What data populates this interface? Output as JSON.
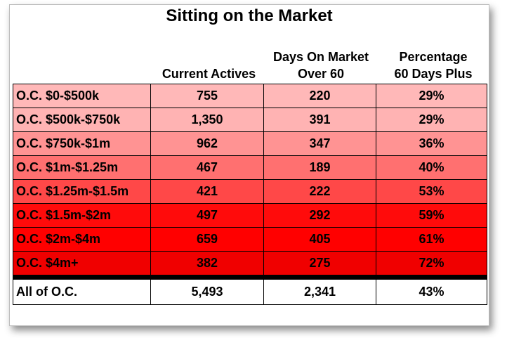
{
  "chart_data": {
    "type": "table",
    "title": "Sitting on the Market",
    "columns": [
      "",
      "Current Actives",
      "Days On Market Over 60",
      "Percentage 60 Days Plus"
    ],
    "column_headers": {
      "current_actives": [
        "Current Actives"
      ],
      "days_on_market": [
        "Days On Market",
        "Over 60"
      ],
      "percentage": [
        "Percentage",
        "60 Days Plus"
      ]
    },
    "rows": [
      {
        "label": "O.C. $0-$500k",
        "current_actives": "755",
        "dom_over_60": "220",
        "percentage": "29%",
        "color": "#ffb8b8"
      },
      {
        "label": "O.C. $500k-$750k",
        "current_actives": "1,350",
        "dom_over_60": "391",
        "percentage": "29%",
        "color": "#ffb3b3"
      },
      {
        "label": "O.C. $750k-$1m",
        "current_actives": "962",
        "dom_over_60": "347",
        "percentage": "36%",
        "color": "#ff9393"
      },
      {
        "label": "O.C. $1m-$1.25m",
        "current_actives": "467",
        "dom_over_60": "189",
        "percentage": "40%",
        "color": "#ff7070"
      },
      {
        "label": "O.C. $1.25m-$1.5m",
        "current_actives": "421",
        "dom_over_60": "222",
        "percentage": "53%",
        "color": "#ff4848"
      },
      {
        "label": "O.C. $1.5m-$2m",
        "current_actives": "497",
        "dom_over_60": "292",
        "percentage": "59%",
        "color": "#ff0b0b"
      },
      {
        "label": "O.C. $2m-$4m",
        "current_actives": "659",
        "dom_over_60": "405",
        "percentage": "61%",
        "color": "#ff0000"
      },
      {
        "label": "O.C. $4m+",
        "current_actives": "382",
        "dom_over_60": "275",
        "percentage": "72%",
        "color": "#f00000"
      }
    ],
    "total": {
      "label": "All of O.C.",
      "current_actives": "5,493",
      "dom_over_60": "2,341",
      "percentage": "43%"
    }
  }
}
